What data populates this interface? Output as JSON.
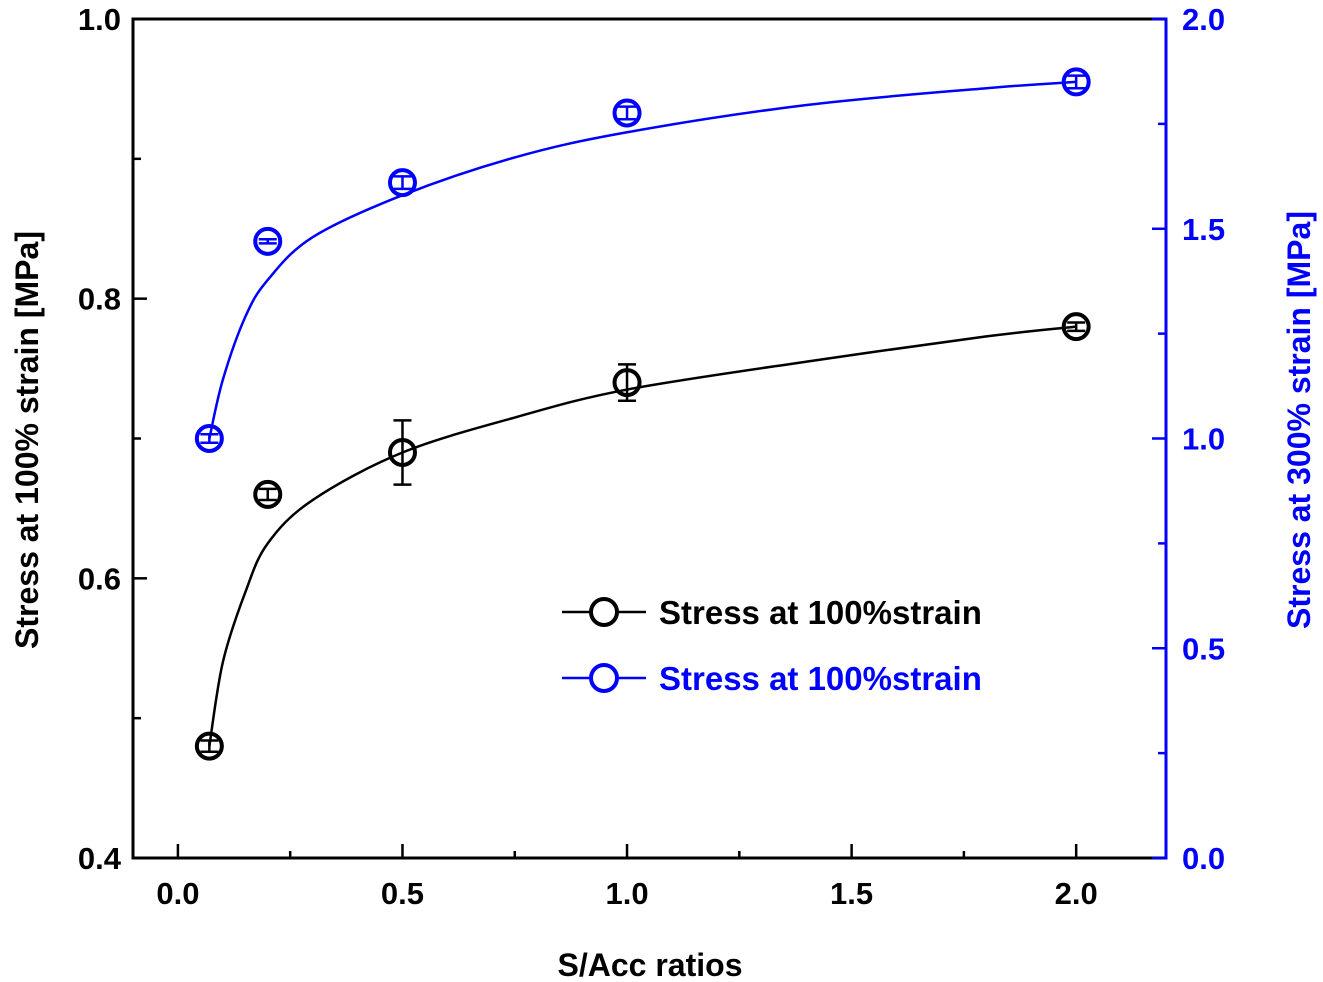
{
  "chart_data": {
    "type": "line",
    "title": "",
    "xlabel": "S/Acc ratios",
    "ylabel_left": "Stress at 100% strain [MPa]",
    "ylabel_right": "Stress at 300% strain [MPa]",
    "xlim": [
      -0.1,
      2.2
    ],
    "ylim_left": [
      0.4,
      1.0
    ],
    "ylim_right": [
      0.0,
      2.0
    ],
    "x_ticks": [
      0.0,
      0.5,
      1.0,
      1.5,
      2.0
    ],
    "x_tick_labels": [
      "0.0",
      "0.5",
      "1.0",
      "1.5",
      "2.0"
    ],
    "x_minor_ticks": [
      0.25,
      0.75,
      1.25,
      1.75
    ],
    "y_left_ticks": [
      0.4,
      0.6,
      0.8,
      1.0
    ],
    "y_left_tick_labels": [
      "0.4",
      "0.6",
      "0.8",
      "1.0"
    ],
    "y_left_minor_ticks": [
      0.5,
      0.7,
      0.9
    ],
    "y_right_ticks": [
      0.0,
      0.5,
      1.0,
      1.5,
      2.0
    ],
    "y_right_tick_labels": [
      "0.0",
      "0.5",
      "1.0",
      "1.5",
      "2.0"
    ],
    "y_right_minor_ticks": [
      0.25,
      0.75,
      1.25,
      1.75
    ],
    "grid": false,
    "legend_position": "lower-right",
    "series": [
      {
        "name": "Stress at 100%strain",
        "axis": "left",
        "color": "#000000",
        "marker": "open-circle",
        "x": [
          0.07,
          0.2,
          0.5,
          1.0,
          2.0
        ],
        "y": [
          0.48,
          0.66,
          0.69,
          0.74,
          0.78
        ],
        "error": [
          0.004,
          0.004,
          0.023,
          0.013,
          0.003
        ],
        "fit_curve": {
          "x": [
            0.07,
            0.1,
            0.15,
            0.2,
            0.3,
            0.5,
            0.75,
            1.0,
            1.4,
            1.8,
            2.0
          ],
          "y": [
            0.48,
            0.54,
            0.59,
            0.625,
            0.656,
            0.69,
            0.715,
            0.735,
            0.755,
            0.773,
            0.78
          ]
        }
      },
      {
        "name": "Stress at 100%strain",
        "axis": "right",
        "color": "#0000ff",
        "marker": "open-circle",
        "x": [
          0.07,
          0.2,
          0.5,
          1.0,
          2.0
        ],
        "y": [
          1.0,
          1.47,
          1.61,
          1.776,
          1.85
        ],
        "error": [
          0.01,
          0.005,
          0.015,
          0.015,
          0.015
        ],
        "fit_curve": {
          "x": [
            0.07,
            0.1,
            0.15,
            0.2,
            0.3,
            0.5,
            0.75,
            1.0,
            1.4,
            1.8,
            2.0
          ],
          "y": [
            1.0,
            1.14,
            1.29,
            1.378,
            1.48,
            1.58,
            1.67,
            1.73,
            1.795,
            1.835,
            1.85
          ]
        }
      }
    ]
  }
}
